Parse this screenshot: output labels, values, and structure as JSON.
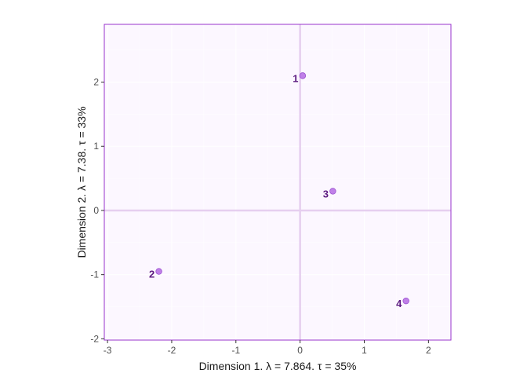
{
  "chart_data": {
    "type": "scatter",
    "xlabel": "Dimension 1.   λ = 7.864.  τ = 35%",
    "ylabel": "Dimension 2.   λ = 7.38.  τ = 33%",
    "xlim": [
      -3.05,
      2.35
    ],
    "ylim": [
      -2.02,
      2.9
    ],
    "xticks": [
      -3,
      -2,
      -1,
      0,
      1,
      2
    ],
    "yticks": [
      -2,
      -1,
      0,
      1,
      2
    ],
    "grid": true,
    "points": [
      {
        "label": "1",
        "x": 0.04,
        "y": 2.1
      },
      {
        "label": "2",
        "x": -2.2,
        "y": -0.95
      },
      {
        "label": "3",
        "x": 0.51,
        "y": 0.3
      },
      {
        "label": "4",
        "x": 1.65,
        "y": -1.41
      }
    ],
    "colors": {
      "panel_bg": "#fcf7ff",
      "panel_border": "#9933cc",
      "grid_major": "#ffffff",
      "zero_line": "#e6cfef",
      "point_fill": "#c080e8",
      "point_stroke": "#9a4fd0",
      "label_color": "#5c1a80"
    }
  }
}
